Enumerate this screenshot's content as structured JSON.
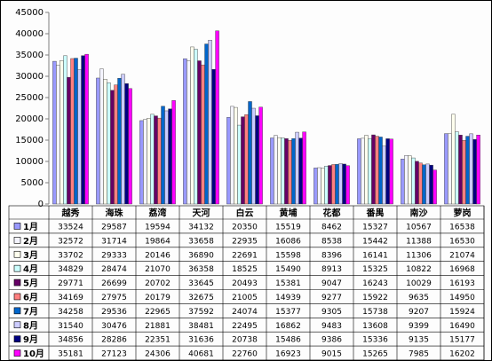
{
  "chart_data": {
    "type": "bar",
    "categories": [
      "越秀",
      "海珠",
      "荔湾",
      "天河",
      "白云",
      "黄埔",
      "花都",
      "番禺",
      "南沙",
      "萝岗"
    ],
    "series": [
      {
        "name": "1月",
        "color": "#9999ff",
        "values": [
          33524,
          29587,
          19594,
          34132,
          20350,
          15519,
          8462,
          15327,
          10567,
          16538
        ]
      },
      {
        "name": "2月",
        "color": "#f4f4ff",
        "values": [
          32572,
          31714,
          19864,
          33658,
          22935,
          16086,
          8538,
          15442,
          11388,
          16530
        ]
      },
      {
        "name": "3月",
        "color": "#ffffee",
        "values": [
          33702,
          29333,
          20146,
          36890,
          22691,
          15598,
          8396,
          16141,
          11306,
          21074
        ]
      },
      {
        "name": "4月",
        "color": "#ccffff",
        "values": [
          34829,
          28474,
          21070,
          36358,
          18525,
          15490,
          8913,
          15325,
          10822,
          16968
        ]
      },
      {
        "name": "5月",
        "color": "#660066",
        "values": [
          29771,
          26699,
          20702,
          33645,
          20493,
          15381,
          9047,
          16243,
          10029,
          16193
        ]
      },
      {
        "name": "6月",
        "color": "#ff8080",
        "values": [
          34169,
          27975,
          20179,
          32675,
          21005,
          14939,
          9277,
          15922,
          9635,
          14950
        ]
      },
      {
        "name": "7月",
        "color": "#0066cc",
        "values": [
          34258,
          29536,
          22965,
          37592,
          24074,
          15377,
          9305,
          15738,
          9207,
          15924
        ]
      },
      {
        "name": "8月",
        "color": "#ccccff",
        "values": [
          31540,
          30476,
          21881,
          38481,
          22495,
          16862,
          9483,
          13608,
          9399,
          16490
        ]
      },
      {
        "name": "9月",
        "color": "#000080",
        "values": [
          34856,
          28286,
          22351,
          31636,
          20738,
          15486,
          9386,
          15336,
          9135,
          15177
        ]
      },
      {
        "name": "10月",
        "color": "#ff00ff",
        "values": [
          35181,
          27123,
          24306,
          40681,
          22760,
          16923,
          9015,
          15265,
          7985,
          16202
        ]
      }
    ],
    "ylim": [
      0,
      45000
    ],
    "yticks": [
      0,
      5000,
      10000,
      15000,
      20000,
      25000,
      30000,
      35000,
      40000,
      45000
    ]
  }
}
